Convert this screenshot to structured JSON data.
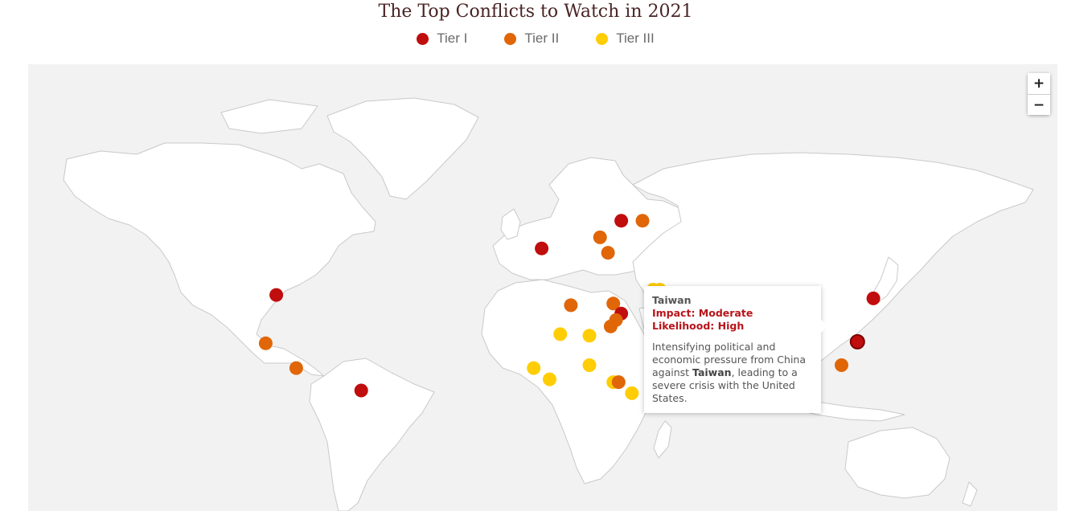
{
  "title": "The Top Conflicts to Watch in 2021",
  "legend": [
    {
      "label": "Tier I",
      "color": "#c00d0d"
    },
    {
      "label": "Tier II",
      "color": "#e06608"
    },
    {
      "label": "Tier III",
      "color": "#ffcd05"
    }
  ],
  "colors": {
    "ocean": "#f2f2f2",
    "land": "#ffffff",
    "border": "#c9c9c9"
  },
  "zoom": {
    "in_label": "+",
    "out_label": "−"
  },
  "tooltip": {
    "location": "Taiwan",
    "impact": "Impact: Moderate",
    "likelihood": "Likelihood: High",
    "description_before": "Intensifying political and economic pressure from China against ",
    "description_bold": "Taiwan",
    "description_after": ", leading to a severe crisis with the United States."
  },
  "markers": [
    {
      "tier": 1,
      "lat": 38.5,
      "lon": -98
    },
    {
      "tier": 2,
      "lat": 23.5,
      "lon": -102
    },
    {
      "tier": 2,
      "lat": 15,
      "lon": -90.5
    },
    {
      "tier": 1,
      "lat": 7,
      "lon": -66
    },
    {
      "tier": 1,
      "lat": 50.5,
      "lon": 2
    },
    {
      "tier": 1,
      "lat": 56.5,
      "lon": 32
    },
    {
      "tier": 2,
      "lat": 56.5,
      "lon": 40
    },
    {
      "tier": 2,
      "lat": 53,
      "lon": 24
    },
    {
      "tier": 2,
      "lat": 49.5,
      "lon": 27
    },
    {
      "tier": 2,
      "lat": 35.5,
      "lon": 13
    },
    {
      "tier": 2,
      "lat": 36,
      "lon": 29
    },
    {
      "tier": 3,
      "lat": 40,
      "lon": 44
    },
    {
      "tier": 3,
      "lat": 40,
      "lon": 46.5
    },
    {
      "tier": 1,
      "lat": 33,
      "lon": 32
    },
    {
      "tier": 2,
      "lat": 31,
      "lon": 30
    },
    {
      "tier": 2,
      "lat": 29,
      "lon": 28
    },
    {
      "tier": 3,
      "lat": 26.5,
      "lon": 9
    },
    {
      "tier": 3,
      "lat": 26,
      "lon": 20
    },
    {
      "tier": 3,
      "lat": 15,
      "lon": -1
    },
    {
      "tier": 3,
      "lat": 11,
      "lon": 5
    },
    {
      "tier": 3,
      "lat": 16,
      "lon": 20
    },
    {
      "tier": 3,
      "lat": 10,
      "lon": 29
    },
    {
      "tier": 2,
      "lat": 10,
      "lon": 31
    },
    {
      "tier": 3,
      "lat": 6,
      "lon": 36
    },
    {
      "tier": 2,
      "lat": 16,
      "lon": 44
    },
    {
      "tier": 1,
      "lat": 37.5,
      "lon": 127
    },
    {
      "tier": 1,
      "lat": 24,
      "lon": 121
    },
    {
      "tier": 2,
      "lat": 16,
      "lon": 115
    }
  ]
}
